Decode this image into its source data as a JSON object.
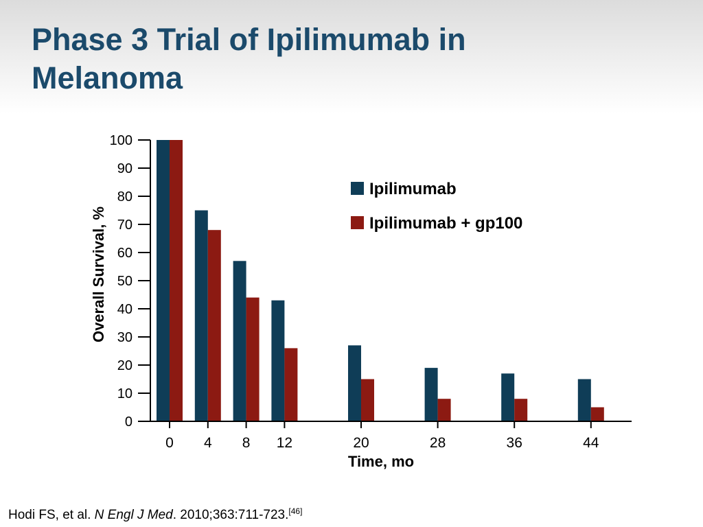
{
  "slide": {
    "title_line1": "Phase 3 Trial of Ipilimumab in",
    "title_line2": "Melanoma"
  },
  "citation": {
    "authors": "Hodi FS, et al. ",
    "journal": "N Engl J Med",
    "details": ". 2010;363:711-723.",
    "ref": "[46]"
  },
  "colors": {
    "ipilimumab": "#0f3d57",
    "ipilimumab_gp100": "#8c1a12",
    "axis": "#000000"
  },
  "chart_data": {
    "type": "bar",
    "title": "",
    "xlabel": "Time, mo",
    "ylabel": "Overall Survival, %",
    "ylim": [
      0,
      100
    ],
    "yticks": [
      0,
      10,
      20,
      30,
      40,
      50,
      60,
      70,
      80,
      90,
      100
    ],
    "x": [
      0,
      4,
      8,
      12,
      20,
      28,
      36,
      44
    ],
    "legend_position": "upper-right",
    "grid": false,
    "series": [
      {
        "name": "Ipilimumab",
        "values": [
          100,
          75,
          57,
          43,
          27,
          19,
          17,
          15
        ]
      },
      {
        "name": "Ipilimumab + gp100",
        "values": [
          100,
          68,
          44,
          26,
          15,
          8,
          8,
          5
        ]
      }
    ]
  }
}
